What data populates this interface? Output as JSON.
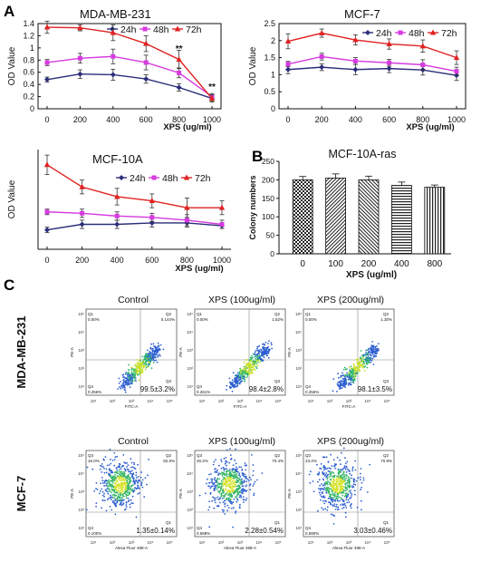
{
  "panels": {
    "A": "A",
    "B": "B",
    "C": "C"
  },
  "chart_data": [
    {
      "id": "mda",
      "type": "line",
      "title": "MDA-MB-231",
      "xlabel": "XPS (ug/ml)",
      "ylabel": "OD Value",
      "x": [
        0,
        200,
        400,
        600,
        800,
        1000
      ],
      "xticks": [
        "0",
        "200",
        "400",
        "600",
        "800",
        "1000"
      ],
      "ylim": [
        0,
        1.4
      ],
      "yticks": [
        "0",
        "0.2",
        "0.4",
        "0.6",
        "0.8",
        "1",
        "1.2",
        "1.4"
      ],
      "annotations": [
        {
          "x": 800,
          "y": 0.94,
          "text": "**"
        },
        {
          "x": 1000,
          "y": 0.31,
          "text": "**"
        }
      ],
      "series": [
        {
          "name": "24h",
          "color": "#2b2d7a",
          "values": [
            0.48,
            0.57,
            0.56,
            0.49,
            0.35,
            0.17
          ],
          "errors": [
            0.04,
            0.07,
            0.09,
            0.07,
            0.06,
            0.04
          ]
        },
        {
          "name": "48h",
          "color": "#d63be0",
          "values": [
            0.76,
            0.83,
            0.86,
            0.76,
            0.59,
            0.2
          ],
          "errors": [
            0.05,
            0.08,
            0.12,
            0.12,
            0.08,
            0.05
          ]
        },
        {
          "name": "72h",
          "color": "#e02222",
          "values": [
            1.34,
            1.33,
            1.25,
            1.07,
            0.81,
            0.17
          ],
          "errors": [
            0.1,
            0.05,
            0.13,
            0.13,
            0.15,
            0.06
          ]
        }
      ]
    },
    {
      "id": "mcf7",
      "type": "line",
      "title": "MCF-7",
      "xlabel": "XPS (ug/ml)",
      "ylabel": "OD Value",
      "x": [
        0,
        200,
        400,
        600,
        800,
        1000
      ],
      "xticks": [
        "0",
        "200",
        "400",
        "600",
        "800",
        "1000"
      ],
      "ylim": [
        0,
        2.5
      ],
      "yticks": [
        "0",
        "0.5",
        "1",
        "1.5",
        "2",
        "2.5"
      ],
      "annotations": [],
      "series": [
        {
          "name": "24h",
          "color": "#2b2d7a",
          "values": [
            1.15,
            1.22,
            1.15,
            1.18,
            1.14,
            0.98
          ],
          "errors": [
            0.12,
            0.1,
            0.15,
            0.12,
            0.15,
            0.15
          ]
        },
        {
          "name": "48h",
          "color": "#d63be0",
          "values": [
            1.31,
            1.53,
            1.4,
            1.35,
            1.29,
            1.1
          ],
          "errors": [
            0.08,
            0.1,
            0.1,
            0.1,
            0.15,
            0.12
          ]
        },
        {
          "name": "72h",
          "color": "#e02222",
          "values": [
            1.98,
            2.22,
            2.02,
            1.9,
            1.84,
            1.5
          ],
          "errors": [
            0.22,
            0.12,
            0.15,
            0.15,
            0.18,
            0.2
          ]
        }
      ]
    },
    {
      "id": "mcf10a",
      "type": "line",
      "title": "MCF-10A",
      "xlabel": "XPS (ug/ml)",
      "ylabel": "OD Value",
      "x": [
        0,
        200,
        400,
        600,
        800,
        1000
      ],
      "xticks": [
        "0",
        "200",
        "400",
        "600",
        "800",
        "1000"
      ],
      "ylim": [
        0,
        0.72
      ],
      "yticks": [],
      "annotations": [],
      "series": [
        {
          "name": "24h",
          "color": "#2b2d7a",
          "values": [
            0.14,
            0.18,
            0.18,
            0.19,
            0.19,
            0.17
          ],
          "errors": [
            0.02,
            0.03,
            0.03,
            0.03,
            0.03,
            0.02
          ]
        },
        {
          "name": "48h",
          "color": "#d63be0",
          "values": [
            0.27,
            0.26,
            0.24,
            0.23,
            0.21,
            0.18
          ],
          "errors": [
            0.02,
            0.03,
            0.03,
            0.03,
            0.04,
            0.03
          ]
        },
        {
          "name": "72h",
          "color": "#e02222",
          "values": [
            0.61,
            0.45,
            0.38,
            0.35,
            0.3,
            0.3
          ],
          "errors": [
            0.07,
            0.05,
            0.06,
            0.05,
            0.07,
            0.05
          ]
        }
      ]
    },
    {
      "id": "ras",
      "type": "bar",
      "title": "MCF-10A-ras",
      "xlabel": "XPS (ug/ml)",
      "ylabel": "Colony numbers",
      "categories": [
        "0",
        "100",
        "200",
        "400",
        "800"
      ],
      "values": [
        200,
        205,
        200,
        185,
        180
      ],
      "errors": [
        9,
        11,
        10,
        9,
        6
      ],
      "ylim": [
        0,
        250
      ],
      "yticks": [
        "0",
        "50",
        "100",
        "150",
        "200",
        "250"
      ]
    }
  ],
  "flow": {
    "columns": [
      "Control",
      "XPS (100ug/ml)",
      "XPS (200ug/ml)"
    ],
    "rows": [
      {
        "name": "MDA-MB-231",
        "xaxis": "FITC-A",
        "yaxis": "PE-A",
        "plots": [
          {
            "q1": "Q1",
            "q2": "Q2",
            "q3": "Q3",
            "q4": "Q4",
            "q1v": "0.00%",
            "q2v": "0.144%",
            "q4v": "0.256%",
            "main": "99.5±3.2%"
          },
          {
            "q1": "Q1",
            "q2": "Q2",
            "q3": "Q3",
            "q4": "Q4",
            "q1v": "0.00%",
            "q2v": "1.62%",
            "q4v": "0.261%",
            "main": "98.4±2.8%"
          },
          {
            "q1": "Q1",
            "q2": "Q2",
            "q3": "Q3",
            "q4": "Q4",
            "q1v": "0.00%",
            "q2v": "1.30%",
            "q4v": "0.256%",
            "main": "98.1±3.5%"
          }
        ]
      },
      {
        "name": "MCF-7",
        "xaxis": "Alexa Fluor 488-A",
        "yaxis": "PE-A",
        "plots": [
          {
            "q1": "Q3",
            "q2": "Q2",
            "q3": "Q1",
            "q4": "Q4",
            "q1v": "16.0%",
            "q2v": "82.5%",
            "q4v": "0.100%",
            "main": "1.35±0.14%"
          },
          {
            "q1": "Q3",
            "q2": "Q2",
            "q3": "Q1",
            "q4": "Q4",
            "q1v": "26.2%",
            "q2v": "70.4%",
            "q4v": "0.598%",
            "main": "2.28±0.54%"
          },
          {
            "q1": "Q3",
            "q2": "Q2",
            "q3": "Q1",
            "q4": "Q4",
            "q1v": "23.4%",
            "q2v": "70.9%",
            "q4v": "0.590%",
            "main": "3.03±0.46%"
          }
        ]
      }
    ]
  }
}
